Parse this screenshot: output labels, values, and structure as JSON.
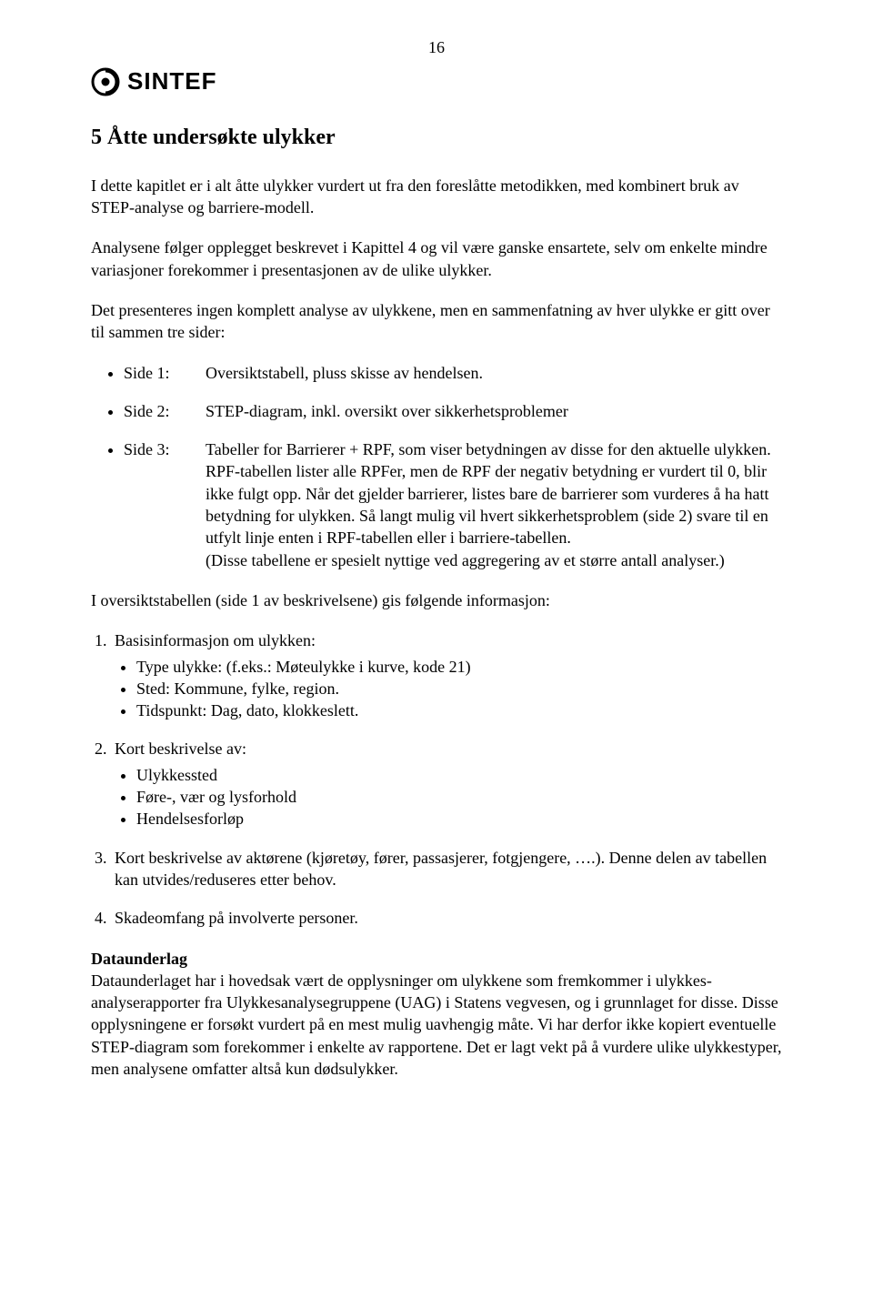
{
  "pageNumber": "16",
  "logo": {
    "text": "SINTEF"
  },
  "title": "5   Åtte undersøkte ulykker",
  "intro1": "I dette kapitlet er i alt åtte ulykker vurdert ut fra den foreslåtte metodikken, med kombinert bruk av STEP-analyse og barriere-modell.",
  "intro2": "Analysene følger opplegget beskrevet i Kapittel 4 og vil være ganske ensartete, selv om enkelte mindre variasjoner forekommer i presentasjonen av de ulike ulykker.",
  "intro3": "Det presenteres ingen komplett analyse av ulykkene, men en sammenfatning av hver ulykke er gitt over til sammen tre sider:",
  "sides": [
    {
      "label": "Side 1:",
      "desc": "Oversiktstabell, pluss skisse av hendelsen."
    },
    {
      "label": "Side 2:",
      "desc": "STEP-diagram, inkl. oversikt over sikkerhetsproblemer"
    },
    {
      "label": "Side 3:",
      "desc": "Tabeller for Barrierer + RPF, som viser betydningen av disse for den aktuelle ulykken. RPF-tabellen lister alle RPFer, men de RPF der negativ betydning er vurdert til 0, blir ikke fulgt opp. Når det gjelder barrierer, listes bare de barrierer som vurderes å ha hatt betydning for ulykken. Så langt mulig vil hvert sikkerhetsproblem (side 2) svare til en utfylt linje enten i RPF-tabellen eller i barriere-tabellen.\n(Disse tabellene er spesielt nyttige ved aggregering av et større antall analyser.)"
    }
  ],
  "overviewLine": "I oversiktstabellen (side 1 av beskrivelsene) gis følgende informasjon:",
  "numItems": [
    {
      "lead": "Basisinformasjon om ulykken:",
      "subs": [
        "Type ulykke: (f.eks.: Møteulykke i kurve, kode 21)",
        "Sted: Kommune, fylke, region.",
        "Tidspunkt: Dag, dato, klokkeslett."
      ]
    },
    {
      "lead": "Kort beskrivelse av:",
      "subs": [
        "Ulykkessted",
        "Føre-, vær og lysforhold",
        "Hendelsesforløp"
      ]
    },
    {
      "lead": "Kort beskrivelse av aktørene (kjøretøy, fører, passasjerer, fotgjengere, ….). Denne delen av tabellen kan utvides/reduseres etter behov.",
      "subs": []
    },
    {
      "lead": "Skadeomfang på involverte personer.",
      "subs": []
    }
  ],
  "dataHeading": "Dataunderlag",
  "dataBody": "Dataunderlaget har i hovedsak vært de opplysninger om ulykkene som fremkommer i ulykkes-analyserapporter fra Ulykkesanalysegruppene (UAG) i Statens vegvesen, og i grunnlaget for disse. Disse opplysningene er forsøkt vurdert på en mest mulig uavhengig måte. Vi har derfor ikke kopiert eventuelle STEP-diagram som forekommer i enkelte av rapportene. Det er lagt vekt på å vurdere ulike ulykkestyper, men analysene omfatter altså kun dødsulykker."
}
